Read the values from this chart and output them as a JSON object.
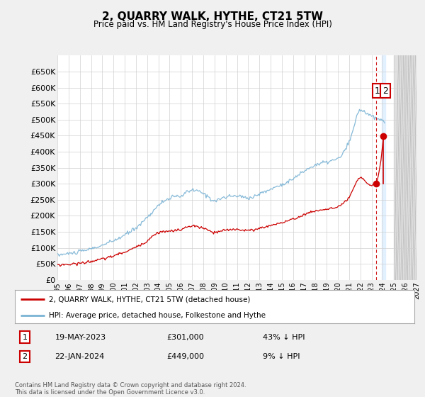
{
  "title": "2, QUARRY WALK, HYTHE, CT21 5TW",
  "subtitle": "Price paid vs. HM Land Registry's House Price Index (HPI)",
  "hpi_color": "#7ab3d4",
  "price_color": "#cc0000",
  "vline_color": "#cc0000",
  "background_color": "#f0f0f0",
  "plot_bg_color": "#ffffff",
  "legend_label_red": "2, QUARRY WALK, HYTHE, CT21 5TW (detached house)",
  "legend_label_blue": "HPI: Average price, detached house, Folkestone and Hythe",
  "transaction1_date": "19-MAY-2023",
  "transaction1_price": "£301,000",
  "transaction1_note": "43% ↓ HPI",
  "transaction2_date": "22-JAN-2024",
  "transaction2_price": "£449,000",
  "transaction2_note": "9% ↓ HPI",
  "footnote": "Contains HM Land Registry data © Crown copyright and database right 2024.\nThis data is licensed under the Open Government Licence v3.0.",
  "sale1_x": 2023.38,
  "sale1_y": 301000,
  "sale2_x": 2024.06,
  "sale2_y": 449000,
  "xmin": 1995,
  "xmax": 2027,
  "ylim": [
    0,
    700000
  ],
  "yticks": [
    0,
    50000,
    100000,
    150000,
    200000,
    250000,
    300000,
    350000,
    400000,
    450000,
    500000,
    550000,
    600000,
    650000
  ],
  "ytick_labels": [
    "£0",
    "£50K",
    "£100K",
    "£150K",
    "£200K",
    "£250K",
    "£300K",
    "£350K",
    "£400K",
    "£450K",
    "£500K",
    "£550K",
    "£600K",
    "£650K"
  ]
}
